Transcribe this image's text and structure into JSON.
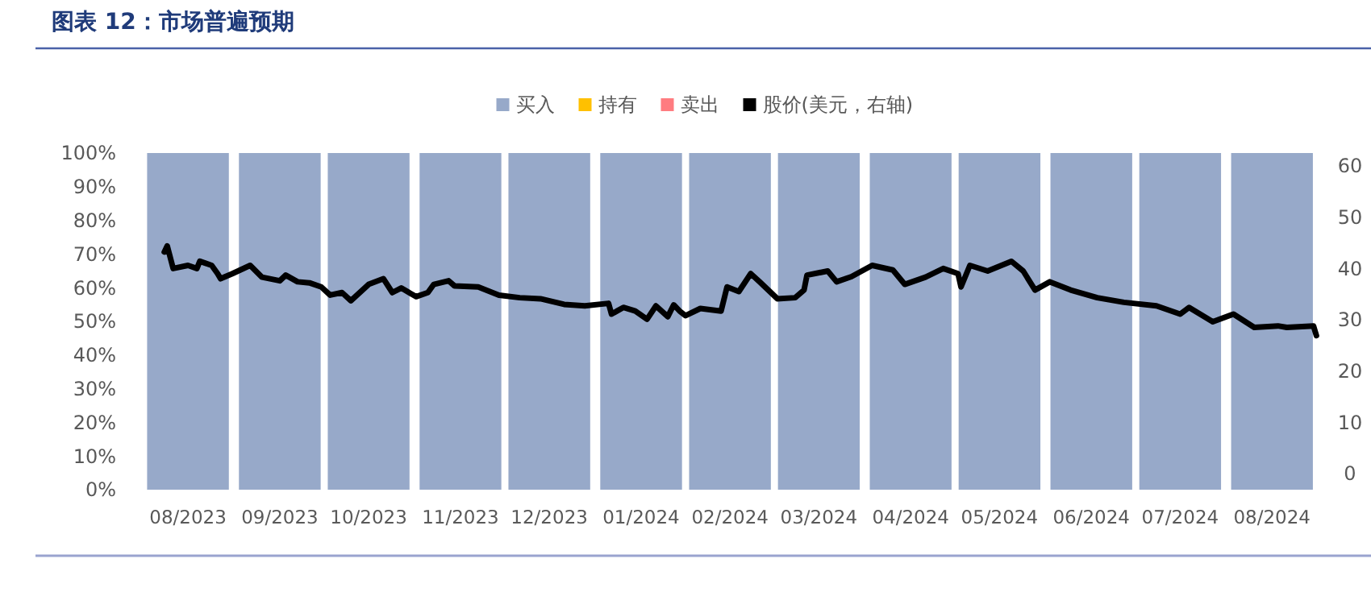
{
  "chart_data": {
    "type": "bar",
    "title": "图表 12：市场普遍预期",
    "stacked": true,
    "legend": "top",
    "x": [
      "2023-08-16",
      "2023-09-16",
      "2023-10-16",
      "2023-11-16",
      "2023-12-16",
      "2024-01-16",
      "2024-02-15",
      "2024-03-16",
      "2024-04-16",
      "2024-05-16",
      "2024-06-16",
      "2024-07-16",
      "2024-08-16"
    ],
    "xlim": [
      "2023-08-01",
      "2024-09-01"
    ],
    "xticks": [
      {
        "value": "2023-08-16",
        "label": "08/2023"
      },
      {
        "value": "2023-09-16",
        "label": "09/2023"
      },
      {
        "value": "2023-10-16",
        "label": "10/2023"
      },
      {
        "value": "2023-11-16",
        "label": "11/2023"
      },
      {
        "value": "2023-12-16",
        "label": "12/2023"
      },
      {
        "value": "2024-01-16",
        "label": "01/2024"
      },
      {
        "value": "2024-02-15",
        "label": "02/2024"
      },
      {
        "value": "2024-03-16",
        "label": "03/2024"
      },
      {
        "value": "2024-04-16",
        "label": "04/2024"
      },
      {
        "value": "2024-05-16",
        "label": "05/2024"
      },
      {
        "value": "2024-06-16",
        "label": "06/2024"
      },
      {
        "value": "2024-07-16",
        "label": "07/2024"
      },
      {
        "value": "2024-08-16",
        "label": "08/2024"
      }
    ],
    "ylim": [
      0,
      100
    ],
    "yticks": [
      {
        "value": 0,
        "label": "0%"
      },
      {
        "value": 10,
        "label": "10%"
      },
      {
        "value": 20,
        "label": "20%"
      },
      {
        "value": 30,
        "label": "30%"
      },
      {
        "value": 40,
        "label": "40%"
      },
      {
        "value": 50,
        "label": "50%"
      },
      {
        "value": 60,
        "label": "60%"
      },
      {
        "value": 70,
        "label": "70%"
      },
      {
        "value": 80,
        "label": "80%"
      },
      {
        "value": 90,
        "label": "90%"
      },
      {
        "value": 100,
        "label": "100%"
      }
    ],
    "y2lim": [
      0,
      60
    ],
    "y2ticks": [
      0,
      10,
      20,
      30,
      40,
      50,
      60
    ],
    "series": [
      {
        "name": "买入",
        "color": "#97a9c9",
        "values": [
          100,
          100,
          100,
          100,
          100,
          100,
          100,
          100,
          100,
          100,
          100,
          100,
          100
        ]
      },
      {
        "name": "持有",
        "color": "#ffc000",
        "values": [
          0,
          0,
          0,
          0,
          0,
          0,
          0,
          0,
          0,
          0,
          0,
          0,
          0
        ]
      },
      {
        "name": "卖出",
        "color": "#ff7c80",
        "values": [
          0,
          0,
          0,
          0,
          0,
          0,
          0,
          0,
          0,
          0,
          0,
          0,
          0
        ]
      },
      {
        "name": "股价(美元，右轴)",
        "type": "line",
        "axis": "y2",
        "color": "#000000",
        "x": [
          "2023-08-08",
          "2023-08-09",
          "2023-08-11",
          "2023-08-16",
          "2023-08-19",
          "2023-08-20",
          "2023-08-24",
          "2023-08-26",
          "2023-08-27",
          "2023-08-31",
          "2023-09-06",
          "2023-09-10",
          "2023-09-16",
          "2023-09-18",
          "2023-09-22",
          "2023-09-26",
          "2023-09-30",
          "2023-10-03",
          "2023-10-07",
          "2023-10-10",
          "2023-10-16",
          "2023-10-21",
          "2023-10-24",
          "2023-10-27",
          "2023-11-01",
          "2023-11-05",
          "2023-11-07",
          "2023-11-12",
          "2023-11-14",
          "2023-11-22",
          "2023-11-29",
          "2023-12-06",
          "2023-12-13",
          "2023-12-21",
          "2023-12-28",
          "2024-01-05",
          "2024-01-06",
          "2024-01-10",
          "2024-01-14",
          "2024-01-18",
          "2024-01-21",
          "2024-01-25",
          "2024-01-27",
          "2024-01-29",
          "2024-01-31",
          "2024-02-05",
          "2024-02-12",
          "2024-02-14",
          "2024-02-18",
          "2024-02-22",
          "2024-02-25",
          "2024-03-02",
          "2024-03-08",
          "2024-03-11",
          "2024-03-12",
          "2024-03-19",
          "2024-03-22",
          "2024-03-27",
          "2024-04-03",
          "2024-04-10",
          "2024-04-14",
          "2024-04-21",
          "2024-04-27",
          "2024-05-02",
          "2024-05-03",
          "2024-05-06",
          "2024-05-12",
          "2024-05-20",
          "2024-05-24",
          "2024-05-28",
          "2024-06-02",
          "2024-06-09",
          "2024-06-18",
          "2024-06-27",
          "2024-07-08",
          "2024-07-16",
          "2024-07-19",
          "2024-07-27",
          "2024-08-03",
          "2024-08-10",
          "2024-08-18",
          "2024-08-21",
          "2024-08-30",
          "2024-08-31"
        ],
        "values": [
          43.2,
          44.4,
          40.0,
          40.6,
          40.0,
          41.4,
          40.6,
          39.0,
          38.0,
          39.0,
          40.6,
          38.3,
          37.6,
          38.7,
          37.4,
          37.2,
          36.4,
          34.8,
          35.3,
          33.7,
          36.9,
          38.0,
          35.3,
          36.2,
          34.5,
          35.3,
          36.9,
          37.6,
          36.6,
          36.4,
          34.8,
          34.3,
          34.1,
          33.0,
          32.7,
          33.2,
          31.1,
          32.4,
          31.7,
          30.1,
          32.7,
          30.6,
          32.9,
          31.7,
          30.8,
          32.2,
          31.7,
          36.4,
          35.5,
          39.0,
          37.4,
          34.1,
          34.3,
          35.8,
          38.7,
          39.5,
          37.4,
          38.4,
          40.6,
          39.7,
          36.9,
          38.3,
          40.0,
          39.0,
          36.4,
          40.6,
          39.5,
          41.4,
          39.5,
          35.8,
          37.4,
          35.8,
          34.3,
          33.4,
          32.7,
          31.1,
          32.4,
          29.6,
          31.1,
          28.5,
          28.8,
          28.5,
          28.8,
          26.9
        ]
      }
    ]
  }
}
